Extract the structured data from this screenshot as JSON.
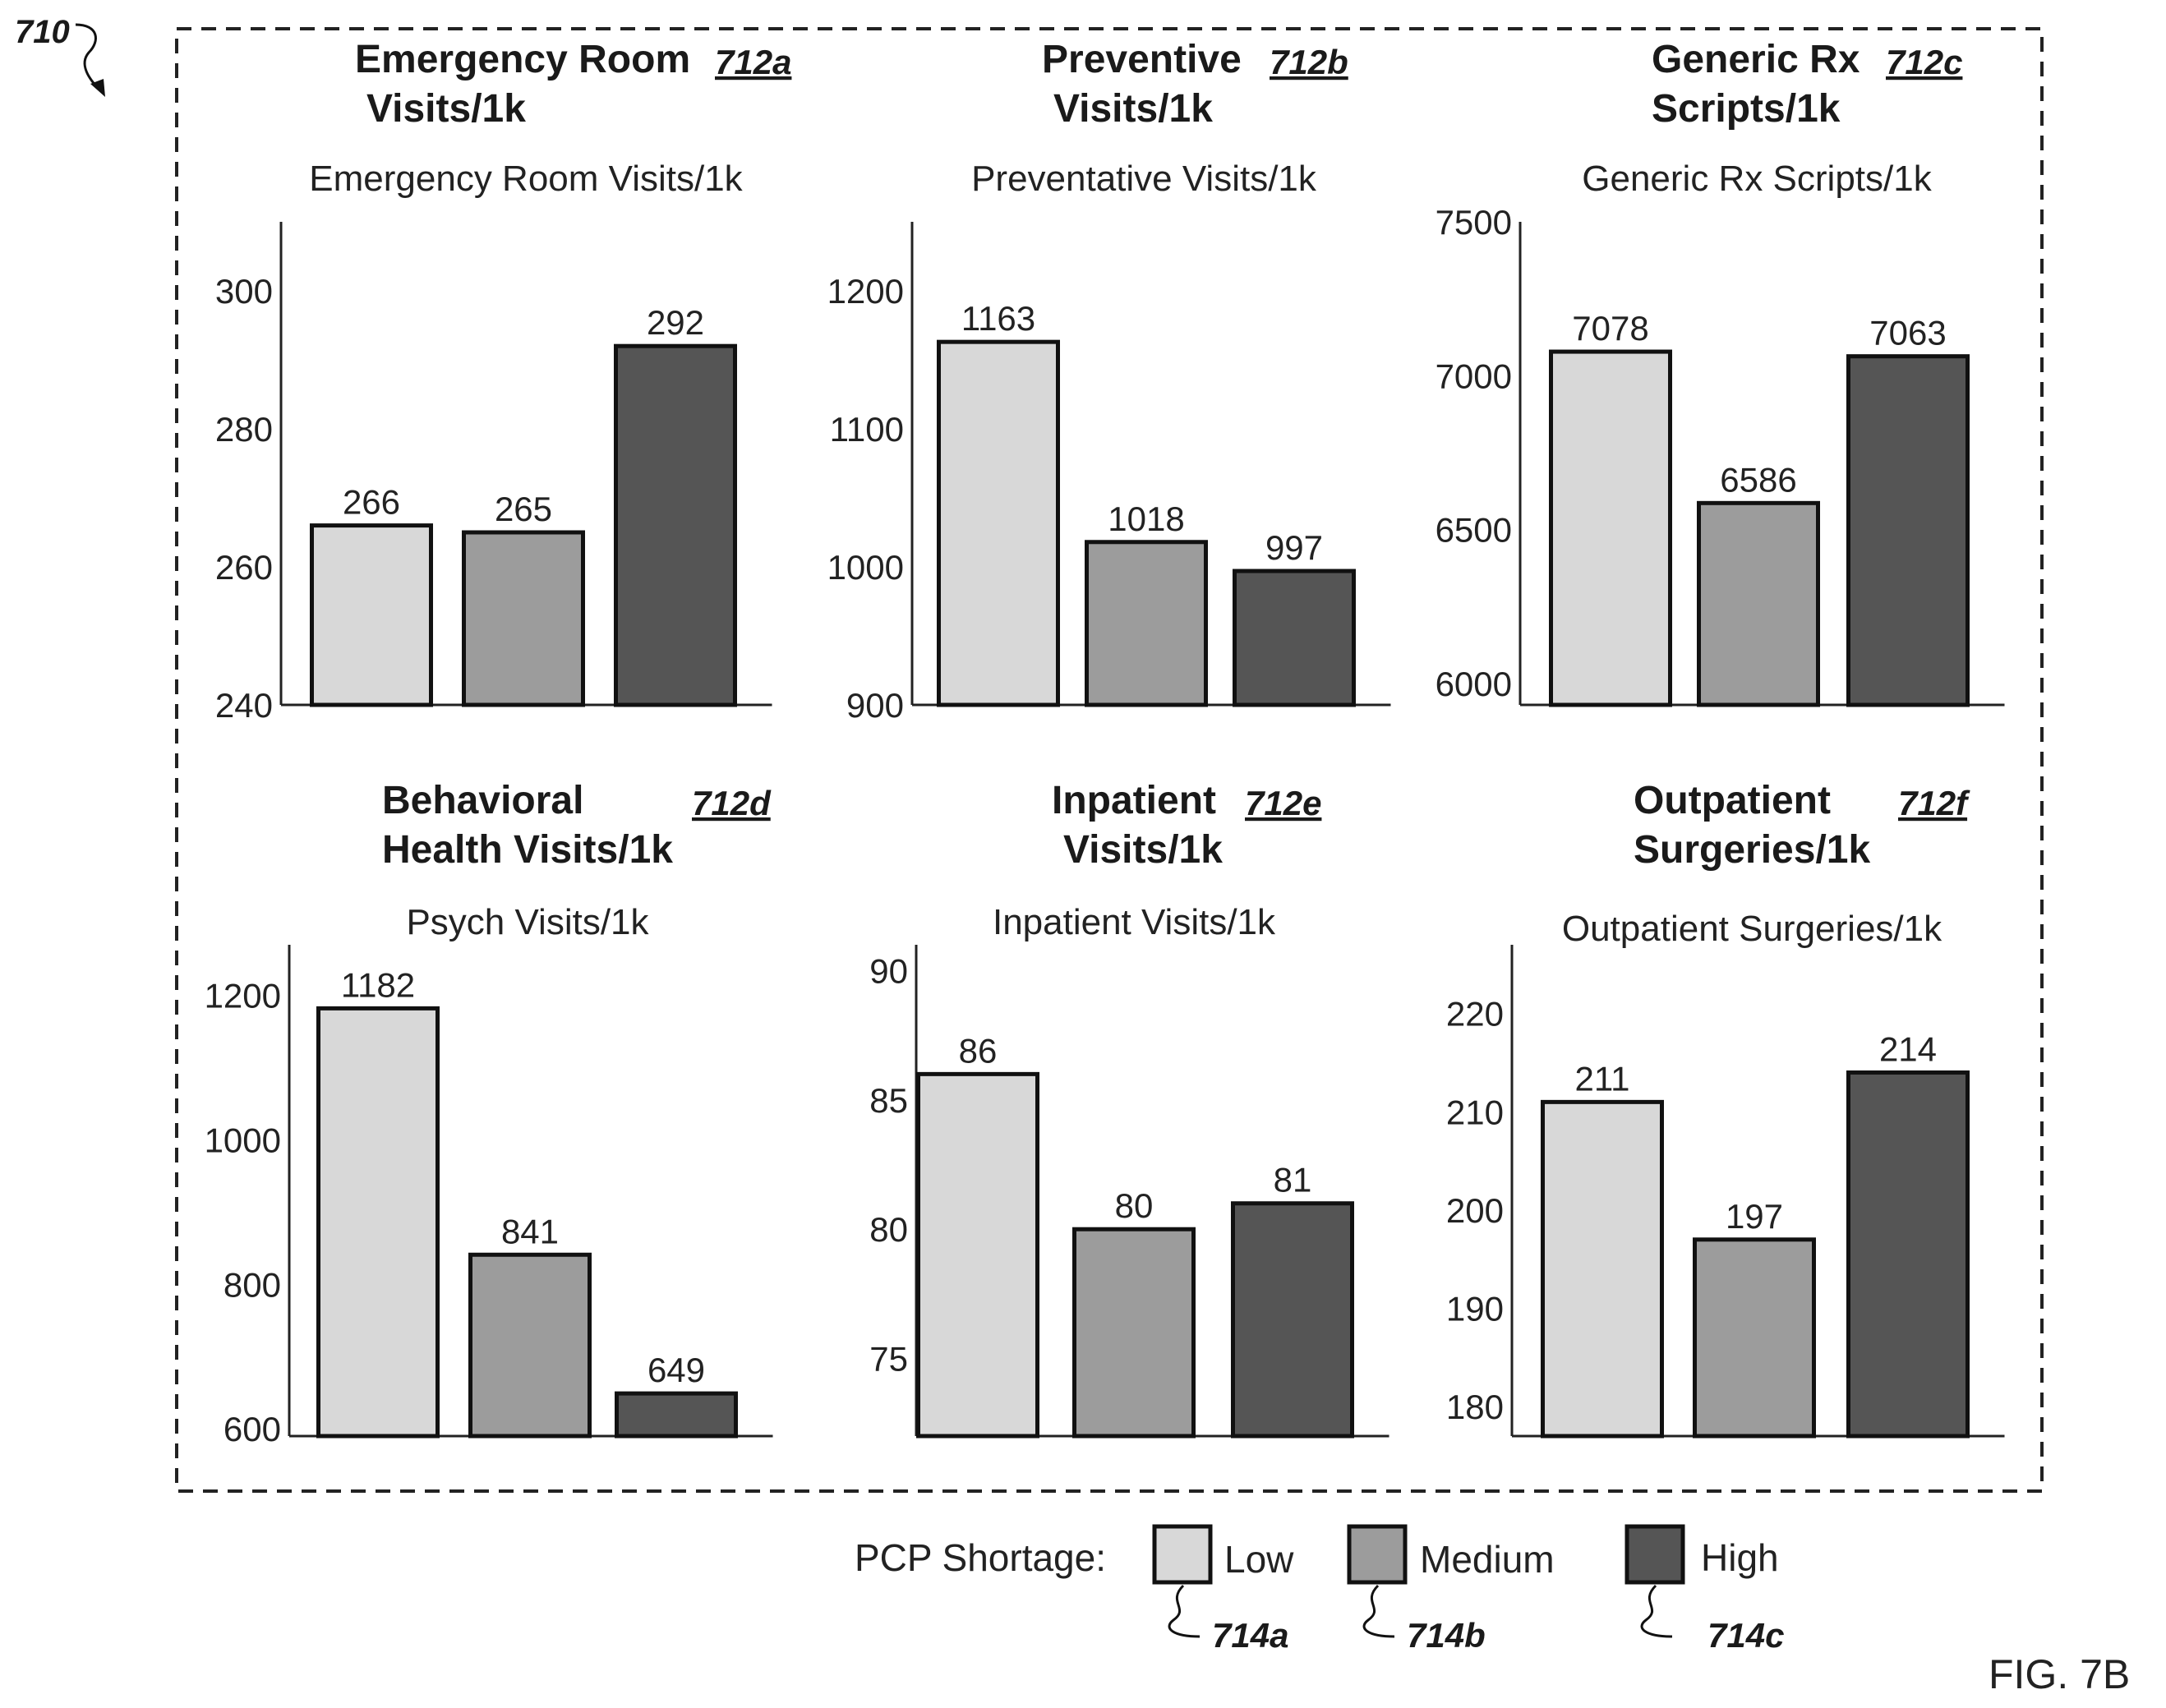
{
  "figure_number": "710",
  "figure_label": "FIG. 7B",
  "colors": {
    "low": "#d8d8d8",
    "medium": "#9c9c9c",
    "high": "#555555"
  },
  "legend": {
    "title": "PCP Shortage:",
    "items": [
      {
        "label": "Low",
        "ref": "714a",
        "color_key": "low"
      },
      {
        "label": "Medium",
        "ref": "714b",
        "color_key": "medium"
      },
      {
        "label": "High",
        "ref": "714c",
        "color_key": "high"
      }
    ]
  },
  "panels": [
    {
      "header": [
        "Emergency Room",
        "Visits/1k"
      ],
      "ref": "712a"
    },
    {
      "header": [
        "Preventive",
        "Visits/1k"
      ],
      "ref": "712b"
    },
    {
      "header": [
        "Generic Rx",
        "Scripts/1k"
      ],
      "ref": "712c"
    },
    {
      "header": [
        "Behavioral",
        "Health Visits/1k"
      ],
      "ref": "712d"
    },
    {
      "header": [
        "Inpatient",
        "Visits/1k"
      ],
      "ref": "712e"
    },
    {
      "header": [
        "Outpatient",
        "Surgeries/1k"
      ],
      "ref": "712f"
    }
  ],
  "chart_data": [
    {
      "type": "bar",
      "title": "Emergency Room Visits/1k",
      "categories": [
        "Low",
        "Medium",
        "High"
      ],
      "values": [
        266,
        265,
        292
      ],
      "ylim": [
        240,
        310
      ],
      "yticks": [
        240,
        260,
        280,
        300
      ]
    },
    {
      "type": "bar",
      "title": "Preventative Visits/1k",
      "categories": [
        "Low",
        "Medium",
        "High"
      ],
      "values": [
        1163,
        1018,
        997
      ],
      "ylim": [
        900,
        1250
      ],
      "yticks": [
        900,
        1000,
        1100,
        1200
      ]
    },
    {
      "type": "bar",
      "title": "Generic Rx Scripts/1k",
      "categories": [
        "Low",
        "Medium",
        "High"
      ],
      "values": [
        7078,
        6586,
        7063
      ],
      "ylim": [
        5930,
        7500
      ],
      "yticks": [
        6000,
        6500,
        7000,
        7500
      ]
    },
    {
      "type": "bar",
      "title": "Psych Visits/1k",
      "categories": [
        "Low",
        "Medium",
        "High"
      ],
      "values": [
        1182,
        841,
        649
      ],
      "ylim": [
        590,
        1270
      ],
      "yticks": [
        600,
        800,
        1000,
        1200
      ]
    },
    {
      "type": "bar",
      "title": "Inpatient Visits/1k",
      "categories": [
        "Low",
        "Medium",
        "High"
      ],
      "values": [
        86,
        80,
        81
      ],
      "ylim": [
        72,
        91
      ],
      "yticks": [
        75,
        80,
        85,
        90
      ]
    },
    {
      "type": "bar",
      "title": "Outpatient Surgeries/1k",
      "categories": [
        "Low",
        "Medium",
        "High"
      ],
      "values": [
        211,
        197,
        214
      ],
      "ylim": [
        177,
        227
      ],
      "yticks": [
        180,
        190,
        200,
        210,
        220
      ]
    }
  ]
}
